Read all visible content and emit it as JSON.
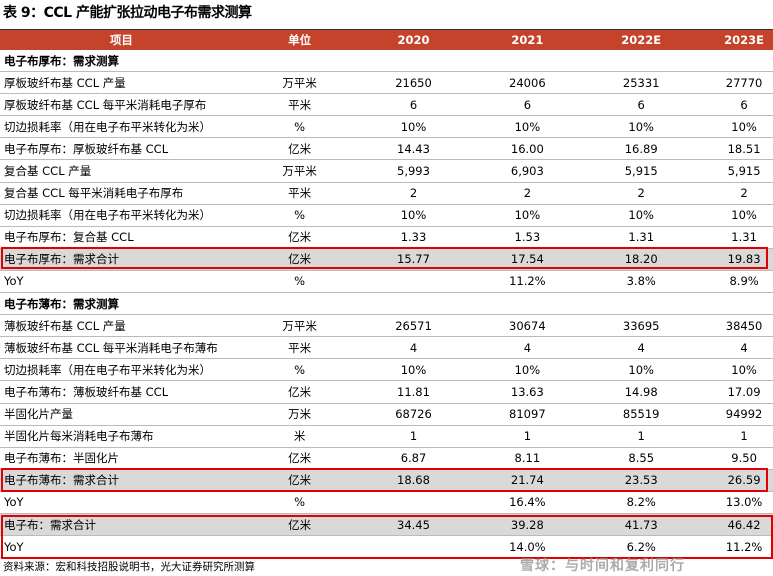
{
  "title": "表 9：CCL 产能扩张拉动电子布需求测算",
  "headers": [
    "项目",
    "单位",
    "2020",
    "2021",
    "2022E",
    "2023E"
  ],
  "rows": [
    {
      "type": "sec",
      "label": "电子布厚布：需求测算",
      "unit": "",
      "values": [
        "",
        "",
        "",
        ""
      ]
    },
    {
      "type": "row",
      "label": "厚板玻纤布基 CCL 产量",
      "unit": "万平米",
      "values": [
        "21650",
        "24006",
        "25331",
        "27770"
      ]
    },
    {
      "type": "row",
      "label": "厚板玻纤布基 CCL 每平米消耗电子厚布",
      "unit": "平米",
      "values": [
        "6",
        "6",
        "6",
        "6"
      ]
    },
    {
      "type": "row",
      "label": "切边损耗率（用在电子布平米转化为米）",
      "unit": "%",
      "values": [
        "10%",
        "10%",
        "10%",
        "10%"
      ]
    },
    {
      "type": "row",
      "label": "电子布厚布：厚板玻纤布基 CCL",
      "unit": "亿米",
      "values": [
        "14.43",
        "16.00",
        "16.89",
        "18.51"
      ]
    },
    {
      "type": "row",
      "label": "复合基 CCL 产量",
      "unit": "万平米",
      "values": [
        "5,993",
        "6,903",
        "5,915",
        "5,915"
      ]
    },
    {
      "type": "row",
      "label": "复合基 CCL 每平米消耗电子布厚布",
      "unit": "平米",
      "values": [
        "2",
        "2",
        "2",
        "2"
      ]
    },
    {
      "type": "row",
      "label": "切边损耗率（用在电子布平米转化为米）",
      "unit": "%",
      "values": [
        "10%",
        "10%",
        "10%",
        "10%"
      ]
    },
    {
      "type": "row",
      "label": "电子布厚布：复合基 CCL",
      "unit": "亿米",
      "values": [
        "1.33",
        "1.53",
        "1.31",
        "1.31"
      ]
    },
    {
      "type": "sum",
      "label": "电子布厚布：需求合计",
      "unit": "亿米",
      "values": [
        "15.77",
        "17.54",
        "18.20",
        "19.83"
      ]
    },
    {
      "type": "row",
      "label": "YoY",
      "unit": "%",
      "values": [
        "",
        "11.2%",
        "3.8%",
        "8.9%"
      ]
    },
    {
      "type": "sec",
      "label": "电子布薄布：需求测算",
      "unit": "",
      "values": [
        "",
        "",
        "",
        ""
      ]
    },
    {
      "type": "row",
      "label": "薄板玻纤布基 CCL 产量",
      "unit": "万平米",
      "values": [
        "26571",
        "30674",
        "33695",
        "38450"
      ]
    },
    {
      "type": "row",
      "label": "薄板玻纤布基 CCL 每平米消耗电子布薄布",
      "unit": "平米",
      "values": [
        "4",
        "4",
        "4",
        "4"
      ]
    },
    {
      "type": "row",
      "label": "切边损耗率（用在电子布平米转化为米）",
      "unit": "%",
      "values": [
        "10%",
        "10%",
        "10%",
        "10%"
      ]
    },
    {
      "type": "row",
      "label": "电子布薄布：薄板玻纤布基 CCL",
      "unit": "亿米",
      "values": [
        "11.81",
        "13.63",
        "14.98",
        "17.09"
      ]
    },
    {
      "type": "row",
      "label": "半固化片产量",
      "unit": "万米",
      "values": [
        "68726",
        "81097",
        "85519",
        "94992"
      ]
    },
    {
      "type": "row",
      "label": "半固化片每米消耗电子布薄布",
      "unit": "米",
      "values": [
        "1",
        "1",
        "1",
        "1"
      ]
    },
    {
      "type": "row",
      "label": "电子布薄布：半固化片",
      "unit": "亿米",
      "values": [
        "6.87",
        "8.11",
        "8.55",
        "9.50"
      ]
    },
    {
      "type": "sum",
      "label": "电子布薄布：需求合计",
      "unit": "亿米",
      "values": [
        "18.68",
        "21.74",
        "23.53",
        "26.59"
      ]
    },
    {
      "type": "row",
      "label": "YoY",
      "unit": "%",
      "values": [
        "",
        "16.4%",
        "8.2%",
        "13.0%"
      ]
    },
    {
      "type": "sum",
      "label": "电子布：需求合计",
      "unit": "亿米",
      "values": [
        "34.45",
        "39.28",
        "41.73",
        "46.42"
      ]
    },
    {
      "type": "row",
      "label": "YoY",
      "unit": "",
      "values": [
        "",
        "14.0%",
        "6.2%",
        "11.2%"
      ]
    }
  ],
  "source": "资料来源：宏和科技招股说明书，光大证券研究所测算",
  "watermark": "雪球：与时间和复利同行",
  "colors": {
    "header_bg": "#c4432a",
    "highlight_border": "#e00000",
    "sum_bg": "#d9d9d9"
  }
}
